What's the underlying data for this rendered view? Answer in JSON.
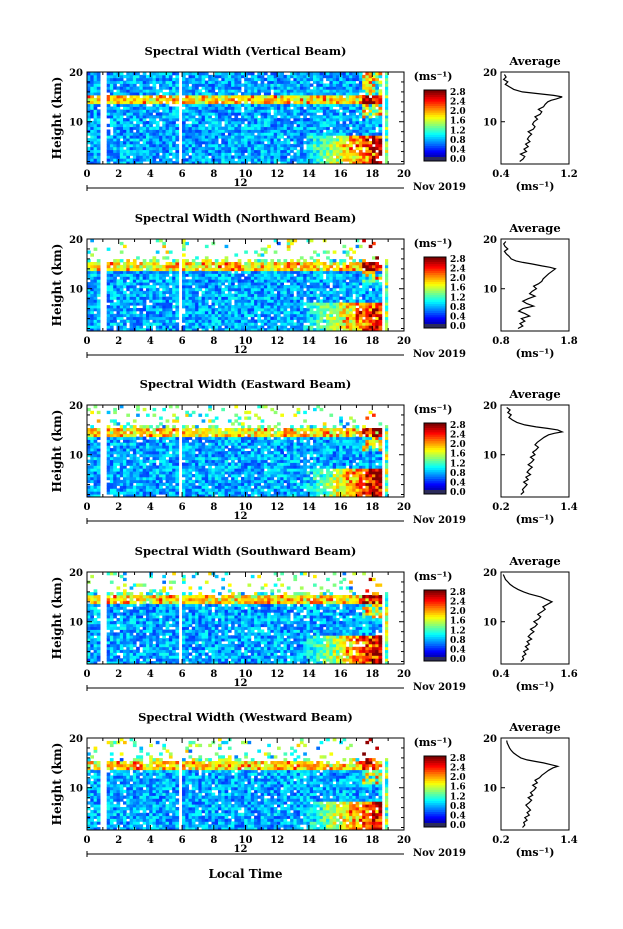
{
  "figure": {
    "date_label": "Nov 2019",
    "xlabel": "Local Time",
    "day_label": "12",
    "ylabel": "Height (km)",
    "colorbar_unit": "(ms⁻¹)",
    "average_title": "Average",
    "average_xlabel": "(ms⁻¹)"
  },
  "chart_data": [
    {
      "type": "heatmap",
      "title": "Spectral Width (Vertical Beam)",
      "xlabel": "Local Time",
      "ylabel": "Height (km)",
      "x_ticks": [
        "0",
        "2",
        "4",
        "6",
        "8",
        "10",
        "12",
        "14",
        "16",
        "18",
        "20"
      ],
      "y_ticks": [
        "20",
        "10"
      ],
      "xlim": [
        0,
        20
      ],
      "ylim": [
        1.5,
        20
      ],
      "colorbar": {
        "unit": "(ms⁻¹)",
        "ticks": [
          "2.8",
          "2.4",
          "2.0",
          "1.6",
          "1.2",
          "0.8",
          "0.4",
          "0.0"
        ],
        "range": [
          0,
          2.8
        ]
      },
      "average_profile": {
        "title": "Average",
        "xlabel": "(ms⁻¹)",
        "x_ticks": [
          "0.4",
          "1.2"
        ],
        "xlim": [
          0.4,
          1.2
        ],
        "y_ticks": [
          "20",
          "10"
        ],
        "x": [
          0.62,
          0.66,
          0.68,
          0.63,
          0.7,
          0.67,
          0.72,
          0.69,
          0.74,
          0.71,
          0.73,
          0.76,
          0.72,
          0.78,
          0.8,
          0.77,
          0.79,
          0.83,
          0.8,
          0.86,
          0.88,
          0.84,
          0.9,
          0.92,
          0.95,
          0.99,
          1.05,
          1.12,
          1.02,
          0.86,
          0.65,
          0.55,
          0.5,
          0.45,
          0.48,
          0.43,
          0.46,
          0.44
        ],
        "y": [
          2,
          2.5,
          3,
          3.5,
          4,
          4.5,
          5,
          5.5,
          6,
          6.5,
          7,
          7.5,
          8,
          8.5,
          9,
          9.5,
          10,
          10.5,
          11,
          11.5,
          12,
          12.5,
          13,
          13.5,
          14,
          14.3,
          14.6,
          15,
          15.3,
          15.6,
          16,
          16.5,
          17,
          17.5,
          18,
          18.5,
          19,
          19.5
        ]
      }
    },
    {
      "type": "heatmap",
      "title": "Spectral Width (Northward Beam)",
      "xlabel": "Local Time",
      "ylabel": "Height (km)",
      "x_ticks": [
        "0",
        "2",
        "4",
        "6",
        "8",
        "10",
        "12",
        "14",
        "16",
        "18",
        "20"
      ],
      "y_ticks": [
        "20",
        "10"
      ],
      "xlim": [
        0,
        20
      ],
      "ylim": [
        1.5,
        20
      ],
      "colorbar": {
        "unit": "(ms⁻¹)",
        "ticks": [
          "2.8",
          "2.4",
          "2.0",
          "1.6",
          "1.2",
          "0.8",
          "0.4",
          "0.0"
        ],
        "range": [
          0,
          2.8
        ]
      },
      "average_profile": {
        "title": "Average",
        "xlabel": "(ms⁻¹)",
        "x_ticks": [
          "0.8",
          "1.8"
        ],
        "xlim": [
          0.8,
          1.8
        ],
        "y_ticks": [
          "20",
          "10"
        ],
        "x": [
          1.05,
          1.12,
          1.08,
          1.15,
          1.1,
          1.22,
          1.15,
          1.06,
          1.12,
          1.28,
          1.18,
          1.12,
          1.2,
          1.3,
          1.22,
          1.26,
          1.32,
          1.28,
          1.35,
          1.4,
          1.42,
          1.46,
          1.5,
          1.55,
          1.6,
          1.52,
          1.4,
          1.25,
          1.12,
          1.02,
          0.95,
          0.92,
          0.88,
          0.85,
          0.9,
          0.86,
          0.84,
          0.87
        ],
        "y": [
          2,
          2.5,
          3,
          3.5,
          4,
          4.5,
          5,
          5.5,
          6,
          6.5,
          7,
          7.5,
          8,
          8.5,
          9,
          9.5,
          10,
          10.5,
          11,
          11.5,
          12,
          12.5,
          13,
          13.5,
          14,
          14.3,
          14.6,
          15,
          15.3,
          15.6,
          16,
          16.5,
          17,
          17.5,
          18,
          18.5,
          19,
          19.5
        ]
      }
    },
    {
      "type": "heatmap",
      "title": "Spectral Width (Eastward Beam)",
      "xlabel": "Local Time",
      "ylabel": "Height (km)",
      "x_ticks": [
        "0",
        "2",
        "4",
        "6",
        "8",
        "10",
        "12",
        "14",
        "16",
        "18",
        "20"
      ],
      "y_ticks": [
        "20",
        "10"
      ],
      "xlim": [
        0,
        20
      ],
      "ylim": [
        1.5,
        20
      ],
      "colorbar": {
        "unit": "(ms⁻¹)",
        "ticks": [
          "2.8",
          "2.4",
          "2.0",
          "1.6",
          "1.2",
          "0.8",
          "0.4",
          "0.0"
        ],
        "range": [
          0,
          2.8
        ]
      },
      "average_profile": {
        "title": "Average",
        "xlabel": "(ms⁻¹)",
        "x_ticks": [
          "0.2",
          "1.4"
        ],
        "xlim": [
          0.2,
          1.4
        ],
        "y_ticks": [
          "20",
          "10"
        ],
        "x": [
          0.55,
          0.6,
          0.58,
          0.62,
          0.66,
          0.6,
          0.68,
          0.64,
          0.72,
          0.66,
          0.7,
          0.75,
          0.68,
          0.74,
          0.78,
          0.72,
          0.8,
          0.76,
          0.82,
          0.86,
          0.8,
          0.84,
          0.9,
          0.96,
          1.04,
          1.14,
          1.28,
          1.2,
          1.02,
          0.82,
          0.62,
          0.48,
          0.4,
          0.34,
          0.38,
          0.32,
          0.36,
          0.3
        ],
        "y": [
          2,
          2.5,
          3,
          3.5,
          4,
          4.5,
          5,
          5.5,
          6,
          6.5,
          7,
          7.5,
          8,
          8.5,
          9,
          9.5,
          10,
          10.5,
          11,
          11.5,
          12,
          12.5,
          13,
          13.5,
          14,
          14.3,
          14.6,
          15,
          15.3,
          15.6,
          16,
          16.5,
          17,
          17.5,
          18,
          18.5,
          19,
          19.5
        ]
      }
    },
    {
      "type": "heatmap",
      "title": "Spectral Width (Southward Beam)",
      "xlabel": "Local Time",
      "ylabel": "Height (km)",
      "x_ticks": [
        "0",
        "2",
        "4",
        "6",
        "8",
        "10",
        "12",
        "14",
        "16",
        "18",
        "20"
      ],
      "y_ticks": [
        "20",
        "10"
      ],
      "xlim": [
        0,
        20
      ],
      "ylim": [
        1.5,
        20
      ],
      "colorbar": {
        "unit": "(ms⁻¹)",
        "ticks": [
          "2.8",
          "2.4",
          "2.0",
          "1.6",
          "1.2",
          "0.8",
          "0.4",
          "0.0"
        ],
        "range": [
          0,
          2.8
        ]
      },
      "average_profile": {
        "title": "Average",
        "xlabel": "(ms⁻¹)",
        "x_ticks": [
          "0.4",
          "1.6"
        ],
        "xlim": [
          0.4,
          1.6
        ],
        "y_ticks": [
          "20",
          "10"
        ],
        "x": [
          0.75,
          0.8,
          0.78,
          0.84,
          0.8,
          0.88,
          0.83,
          0.9,
          0.86,
          0.94,
          0.88,
          0.92,
          0.98,
          0.92,
          1.0,
          1.04,
          0.98,
          1.06,
          1.1,
          1.05,
          1.12,
          1.18,
          1.14,
          1.22,
          1.3,
          1.24,
          1.18,
          1.1,
          1.0,
          0.9,
          0.8,
          0.7,
          0.62,
          0.56,
          0.52,
          0.48,
          0.46,
          0.44
        ],
        "y": [
          2,
          2.5,
          3,
          3.5,
          4,
          4.5,
          5,
          5.5,
          6,
          6.5,
          7,
          7.5,
          8,
          8.5,
          9,
          9.5,
          10,
          10.5,
          11,
          11.5,
          12,
          12.5,
          13,
          13.5,
          14,
          14.3,
          14.6,
          15,
          15.3,
          15.6,
          16,
          16.5,
          17,
          17.5,
          18,
          18.5,
          19,
          19.5
        ]
      }
    },
    {
      "type": "heatmap",
      "title": "Spectral Width (Westward Beam)",
      "xlabel": "Local Time",
      "ylabel": "Height (km)",
      "x_ticks": [
        "0",
        "2",
        "4",
        "6",
        "8",
        "10",
        "12",
        "14",
        "16",
        "18",
        "20"
      ],
      "y_ticks": [
        "20",
        "10"
      ],
      "xlim": [
        0,
        20
      ],
      "ylim": [
        1.5,
        20
      ],
      "colorbar": {
        "unit": "(ms⁻¹)",
        "ticks": [
          "2.8",
          "2.4",
          "2.0",
          "1.6",
          "1.2",
          "0.8",
          "0.4",
          "0.0"
        ],
        "range": [
          0,
          2.8
        ]
      },
      "average_profile": {
        "title": "Average",
        "xlabel": "(ms⁻¹)",
        "x_ticks": [
          "0.2",
          "1.4"
        ],
        "xlim": [
          0.2,
          1.4
        ],
        "y_ticks": [
          "20",
          "10"
        ],
        "x": [
          0.58,
          0.62,
          0.6,
          0.66,
          0.62,
          0.7,
          0.66,
          0.72,
          0.68,
          0.64,
          0.7,
          0.74,
          0.68,
          0.76,
          0.72,
          0.78,
          0.82,
          0.76,
          0.84,
          0.8,
          0.88,
          0.92,
          0.98,
          1.04,
          1.12,
          1.2,
          1.1,
          0.95,
          0.8,
          0.66,
          0.55,
          0.48,
          0.42,
          0.38,
          0.35,
          0.33,
          0.31,
          0.3
        ],
        "y": [
          2,
          2.5,
          3,
          3.5,
          4,
          4.5,
          5,
          5.5,
          6,
          6.5,
          7,
          7.5,
          8,
          8.5,
          9,
          9.5,
          10,
          10.5,
          11,
          11.5,
          12,
          12.5,
          13,
          13.5,
          14,
          14.3,
          14.6,
          15,
          15.3,
          15.6,
          16,
          16.5,
          17,
          17.5,
          18,
          18.5,
          19,
          19.5
        ]
      }
    }
  ]
}
